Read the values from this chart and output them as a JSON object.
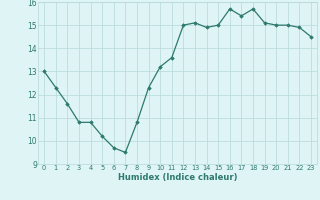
{
  "x": [
    0,
    1,
    2,
    3,
    4,
    5,
    6,
    7,
    8,
    9,
    10,
    11,
    12,
    13,
    14,
    15,
    16,
    17,
    18,
    19,
    20,
    21,
    22,
    23
  ],
  "y": [
    13.0,
    12.3,
    11.6,
    10.8,
    10.8,
    10.2,
    9.7,
    9.5,
    10.8,
    12.3,
    13.2,
    13.6,
    15.0,
    15.1,
    14.9,
    15.0,
    15.7,
    15.4,
    15.7,
    15.1,
    15.0,
    15.0,
    14.9,
    14.5
  ],
  "xlim": [
    -0.5,
    23.5
  ],
  "ylim": [
    9,
    16
  ],
  "yticks": [
    9,
    10,
    11,
    12,
    13,
    14,
    15,
    16
  ],
  "xticks": [
    0,
    1,
    2,
    3,
    4,
    5,
    6,
    7,
    8,
    9,
    10,
    11,
    12,
    13,
    14,
    15,
    16,
    17,
    18,
    19,
    20,
    21,
    22,
    23
  ],
  "xlabel": "Humidex (Indice chaleur)",
  "line_color": "#2d7a6f",
  "marker": "D",
  "marker_size": 1.8,
  "bg_color": "#dff4f4",
  "grid_color": "#b8d8d8",
  "label_color": "#2d7a6f"
}
